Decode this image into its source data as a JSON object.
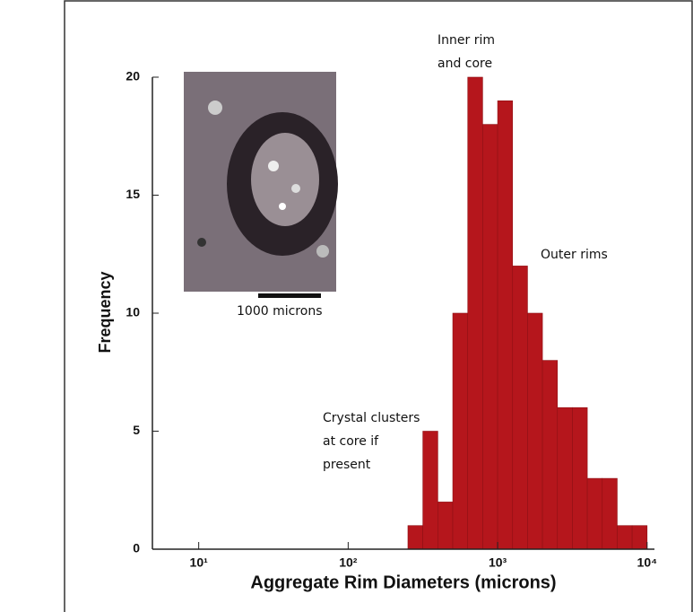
{
  "chart_data": {
    "type": "histogram",
    "xlabel": "Aggregate Rim Diameters (microns)",
    "ylabel": "Frequency",
    "bins": [
      251,
      316,
      398,
      501,
      631,
      794,
      1000,
      1259,
      1585,
      1995,
      2512,
      3162,
      3981,
      5012,
      6310,
      7943,
      10000
    ],
    "counts": [
      1,
      5,
      2,
      10,
      20,
      18,
      19,
      12,
      10,
      8,
      6,
      6,
      3,
      3,
      1,
      1
    ],
    "color": "#b5161c",
    "xlog": true,
    "xlim": [
      4.9,
      11200
    ],
    "ylim": [
      0,
      20
    ],
    "xticks": [
      {
        "value": 10,
        "label": "10¹"
      },
      {
        "value": 100,
        "label": "10²"
      },
      {
        "value": 1000,
        "label": "10³"
      },
      {
        "value": 10000,
        "label": "10⁴"
      }
    ],
    "yticks": [
      0,
      5,
      10,
      15,
      20
    ],
    "annotations": [
      {
        "lines": [
          "Inner rim",
          "and core"
        ]
      },
      {
        "lines": [
          "Outer rims"
        ]
      },
      {
        "lines": [
          "Crystal clusters",
          "at core if",
          "present"
        ]
      },
      {
        "lines": [
          "1000 microns"
        ]
      }
    ]
  }
}
